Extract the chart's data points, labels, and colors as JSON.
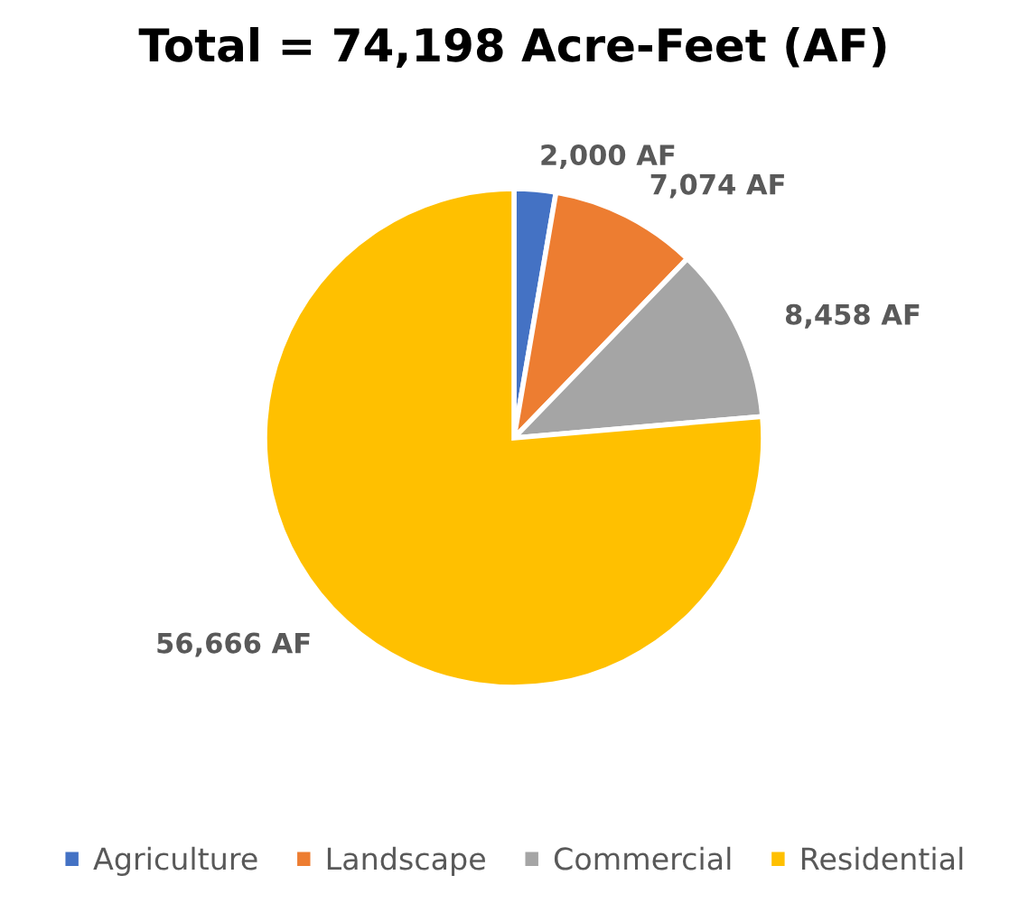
{
  "chart_data": {
    "type": "pie",
    "title": "Total = 74,198 Acre-Feet (AF)",
    "categories": [
      "Agriculture",
      "Landscape",
      "Commercial",
      "Residential"
    ],
    "values": [
      2000,
      7074,
      8458,
      56666
    ],
    "colors": [
      "#4472c4",
      "#ed7d31",
      "#a5a5a5",
      "#ffc000"
    ],
    "value_labels": [
      "2,000 AF",
      "7,074 AF",
      "8,458 AF",
      "56,666 AF"
    ],
    "legend": "bottom"
  }
}
